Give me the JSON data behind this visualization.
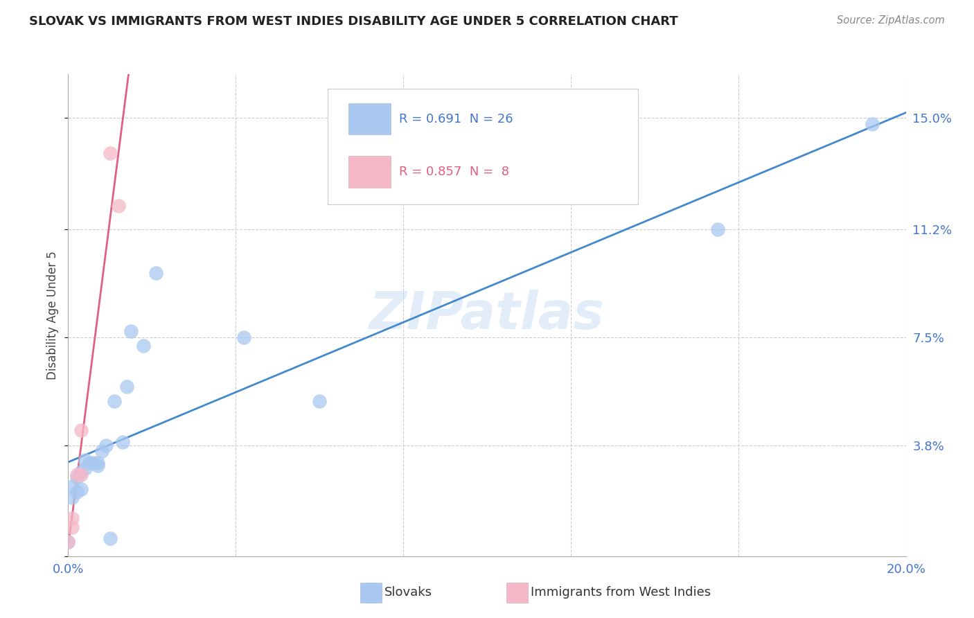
{
  "title": "SLOVAK VS IMMIGRANTS FROM WEST INDIES DISABILITY AGE UNDER 5 CORRELATION CHART",
  "source": "Source: ZipAtlas.com",
  "ylabel": "Disability Age Under 5",
  "xlim": [
    0.0,
    0.2
  ],
  "ylim": [
    0.0,
    0.165
  ],
  "xticks": [
    0.0,
    0.04,
    0.08,
    0.12,
    0.16,
    0.2
  ],
  "xticklabels": [
    "0.0%",
    "",
    "",
    "",
    "",
    "20.0%"
  ],
  "ytick_positions": [
    0.0,
    0.038,
    0.075,
    0.112,
    0.15
  ],
  "yticklabels_right": [
    "",
    "3.8%",
    "7.5%",
    "11.2%",
    "15.0%"
  ],
  "slovak_x": [
    0.0,
    0.001,
    0.001,
    0.002,
    0.002,
    0.003,
    0.003,
    0.004,
    0.004,
    0.005,
    0.006,
    0.007,
    0.007,
    0.008,
    0.009,
    0.01,
    0.011,
    0.013,
    0.014,
    0.015,
    0.018,
    0.021,
    0.042,
    0.06,
    0.155,
    0.192
  ],
  "slovak_y": [
    0.005,
    0.02,
    0.024,
    0.022,
    0.027,
    0.023,
    0.029,
    0.03,
    0.033,
    0.032,
    0.032,
    0.031,
    0.032,
    0.036,
    0.038,
    0.006,
    0.053,
    0.039,
    0.058,
    0.077,
    0.072,
    0.097,
    0.075,
    0.053,
    0.112,
    0.148
  ],
  "westindies_x": [
    0.0,
    0.001,
    0.001,
    0.002,
    0.003,
    0.003,
    0.01,
    0.012
  ],
  "westindies_y": [
    0.005,
    0.01,
    0.013,
    0.028,
    0.043,
    0.028,
    0.138,
    0.12
  ],
  "R_slovak": 0.691,
  "N_slovak": 26,
  "R_westindies": 0.857,
  "N_westindies": 8,
  "color_slovak": "#a8c8f0",
  "color_westindies": "#f5b8c8",
  "line_color_slovak": "#4488cc",
  "line_color_westindies": "#e06080",
  "watermark": "ZIPatlas",
  "background_color": "#ffffff",
  "grid_color": "#cccccc"
}
